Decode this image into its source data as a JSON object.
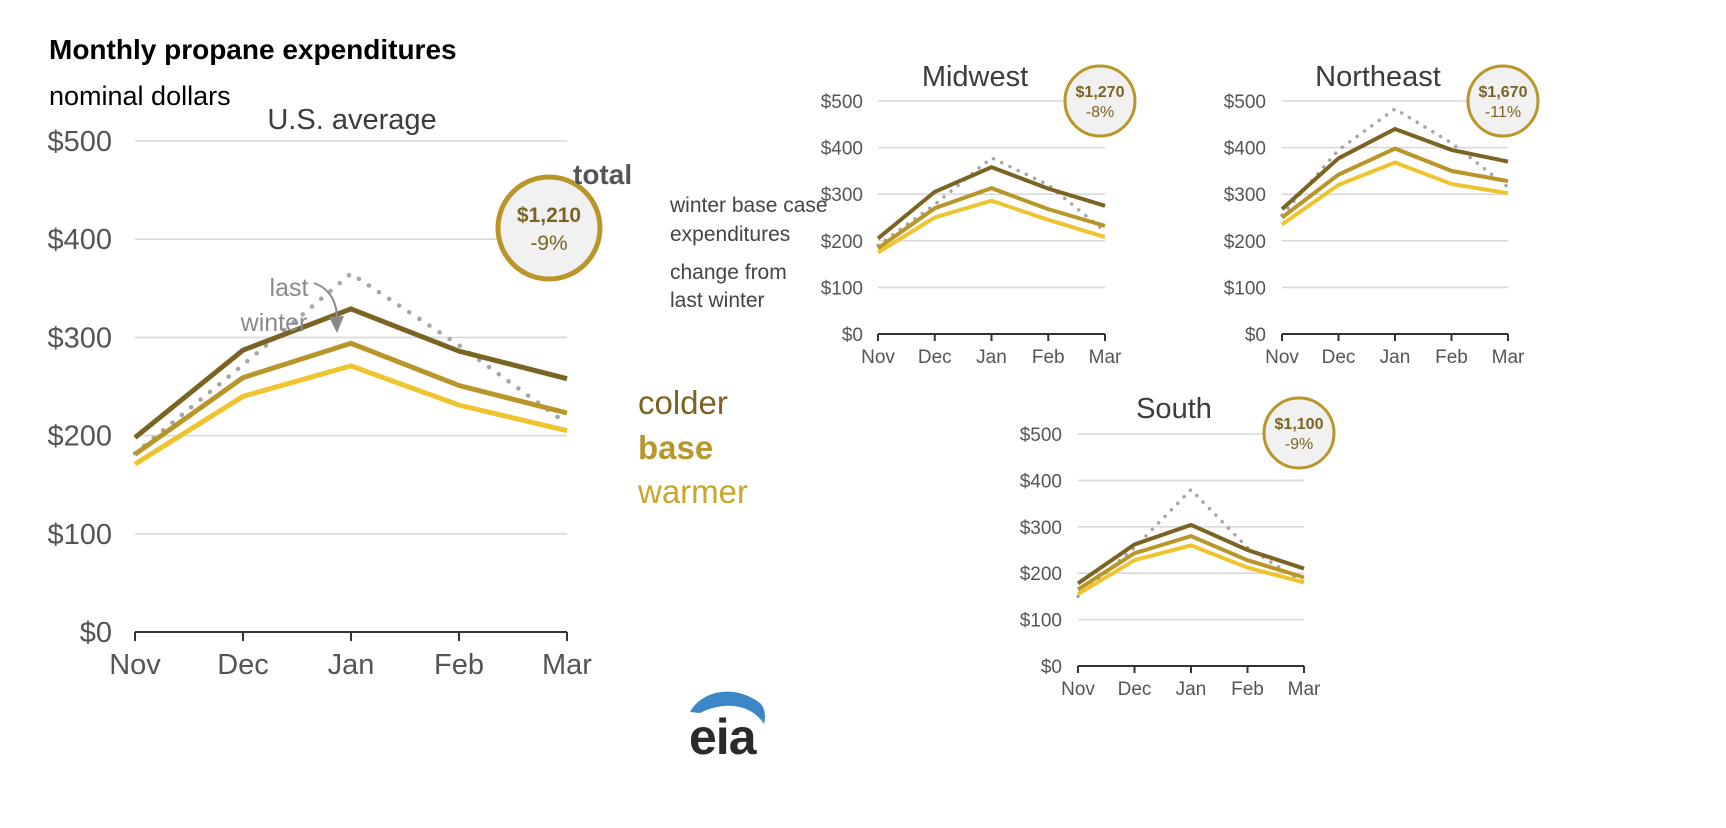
{
  "title": "Monthly propane expenditures",
  "subtitle": "nominal dollars",
  "colors": {
    "colder": "#7a6424",
    "base": "#b8962a",
    "warmer": "#efc42e",
    "last_winter": "#a6a6a6",
    "badge_fill": "#f1f1f1",
    "badge_ring": "#b8962a",
    "badge_value": "#7a6424"
  },
  "us": {
    "total_label": "total",
    "legend_note_top": [
      "winter base case",
      "expenditures"
    ],
    "legend_note_bottom": [
      "change from",
      "last winter"
    ],
    "last_winter_label": [
      "last",
      "winter"
    ],
    "series_labels": {
      "colder": "colder",
      "base": "base",
      "warmer": "warmer"
    }
  },
  "logo_text": "eia",
  "chart_data": [
    {
      "type": "line",
      "title": "U.S. average",
      "categories": [
        "Nov",
        "Dec",
        "Jan",
        "Feb",
        "Mar"
      ],
      "yticks": [
        "$0",
        "$100",
        "$200",
        "$300",
        "$400",
        "$500"
      ],
      "ylim": [
        0,
        500
      ],
      "badge": {
        "value": "$1,210",
        "change": "-9%"
      },
      "series": [
        {
          "name": "last winter",
          "values": [
            182,
            272,
            365,
            292,
            212
          ]
        },
        {
          "name": "warmer",
          "values": [
            171,
            240,
            271,
            231,
            205
          ]
        },
        {
          "name": "base",
          "values": [
            181,
            259,
            294,
            251,
            223
          ]
        },
        {
          "name": "colder",
          "values": [
            198,
            287,
            329,
            286,
            258
          ]
        }
      ]
    },
    {
      "type": "line",
      "title": "Midwest",
      "categories": [
        "Nov",
        "Dec",
        "Jan",
        "Feb",
        "Mar"
      ],
      "yticks": [
        "$0",
        "$100",
        "$200",
        "$300",
        "$400",
        "$500"
      ],
      "ylim": [
        0,
        500
      ],
      "badge": {
        "value": "$1,270",
        "change": "-8%"
      },
      "series": [
        {
          "name": "last winter",
          "values": [
            190,
            278,
            378,
            320,
            220
          ]
        },
        {
          "name": "warmer",
          "values": [
            175,
            250,
            286,
            245,
            208
          ]
        },
        {
          "name": "base",
          "values": [
            184,
            270,
            313,
            268,
            232
          ]
        },
        {
          "name": "colder",
          "values": [
            205,
            305,
            358,
            312,
            275
          ]
        }
      ]
    },
    {
      "type": "line",
      "title": "Northeast",
      "categories": [
        "Nov",
        "Dec",
        "Jan",
        "Feb",
        "Mar"
      ],
      "yticks": [
        "$0",
        "$100",
        "$200",
        "$300",
        "$400",
        "$500"
      ],
      "ylim": [
        0,
        500
      ],
      "badge": {
        "value": "$1,670",
        "change": "-11%"
      },
      "series": [
        {
          "name": "last winter",
          "values": [
            255,
            395,
            483,
            410,
            315
          ]
        },
        {
          "name": "warmer",
          "values": [
            235,
            320,
            368,
            322,
            302
          ]
        },
        {
          "name": "base",
          "values": [
            250,
            342,
            398,
            350,
            328
          ]
        },
        {
          "name": "colder",
          "values": [
            268,
            377,
            440,
            395,
            370
          ]
        }
      ]
    },
    {
      "type": "line",
      "title": "South",
      "categories": [
        "Nov",
        "Dec",
        "Jan",
        "Feb",
        "Mar"
      ],
      "yticks": [
        "$0",
        "$100",
        "$200",
        "$300",
        "$400",
        "$500"
      ],
      "ylim": [
        0,
        500
      ],
      "badge": {
        "value": "$1,100",
        "change": "-9%"
      },
      "series": [
        {
          "name": "last winter",
          "values": [
            150,
            255,
            380,
            255,
            180
          ]
        },
        {
          "name": "warmer",
          "values": [
            155,
            228,
            260,
            212,
            180
          ]
        },
        {
          "name": "base",
          "values": [
            165,
            243,
            280,
            228,
            191
          ]
        },
        {
          "name": "colder",
          "values": [
            178,
            262,
            304,
            250,
            210
          ]
        }
      ]
    }
  ]
}
